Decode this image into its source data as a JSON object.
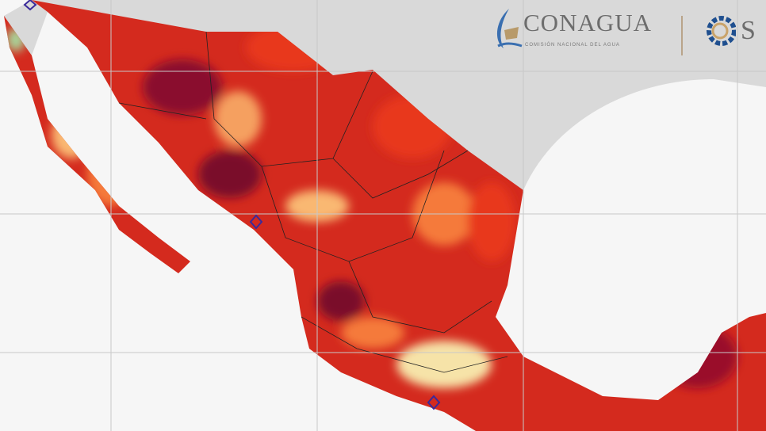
{
  "map": {
    "country": "Mexico",
    "legend_visible": false,
    "colors": {
      "ocean": "#f6f6f6",
      "neighbor_land": "#d9d9d9",
      "extreme": "#7a0a2a",
      "very_hot": "#c4161c",
      "hot": "#e8391d",
      "warm": "#f57a3a",
      "mild": "#f9b872",
      "cool": "#f6e3a8",
      "cold": "#a8d59a",
      "borders": "#222222",
      "grid": "#c8c8c8",
      "station_marker": "#3a2a9a"
    }
  },
  "logos": {
    "conagua_title": "CONAGUA",
    "conagua_subtitle": "COMISIÓN NACIONAL DEL AGUA",
    "smn_title": "S"
  }
}
